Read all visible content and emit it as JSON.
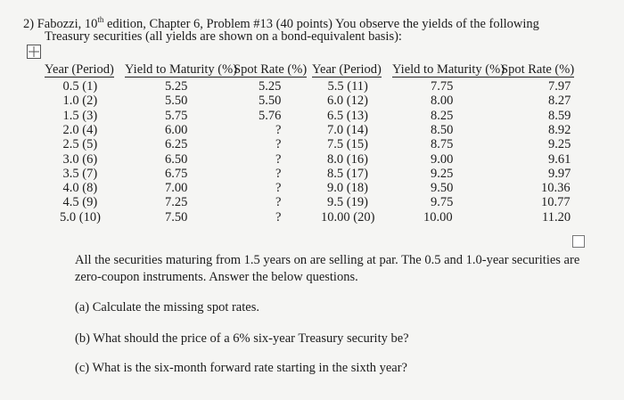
{
  "problem": {
    "prefix": "2) Fabozzi, 10",
    "sup": "th",
    "line1": "edition, Chapter 6, Problem #13 (40 points) You observe the yields of the following",
    "line2": "Treasury securities (all yields are shown on a bond-equivalent basis):"
  },
  "table": {
    "columns": [
      "Year (Period)",
      "Yield to Maturity (%)",
      "Spot Rate (%)",
      "Year (Period)",
      "Yield to Maturity (%)",
      "Spot Rate (%)"
    ],
    "rows": [
      [
        "0.5 (1)",
        "5.25",
        "5.25",
        "5.5 (11)",
        "7.75",
        "7.97"
      ],
      [
        "1.0 (2)",
        "5.50",
        "5.50",
        "6.0 (12)",
        "8.00",
        "8.27"
      ],
      [
        "1.5 (3)",
        "5.75",
        "5.76",
        "6.5 (13)",
        "8.25",
        "8.59"
      ],
      [
        "2.0 (4)",
        "6.00",
        "?",
        "7.0 (14)",
        "8.50",
        "8.92"
      ],
      [
        "2.5 (5)",
        "6.25",
        "?",
        "7.5 (15)",
        "8.75",
        "9.25"
      ],
      [
        "3.0 (6)",
        "6.50",
        "?",
        "8.0 (16)",
        "9.00",
        "9.61"
      ],
      [
        "3.5 (7)",
        "6.75",
        "?",
        "8.5 (17)",
        "9.25",
        "9.97"
      ],
      [
        "4.0 (8)",
        "7.00",
        "?",
        "9.0 (18)",
        "9.50",
        "10.36"
      ],
      [
        "4.5 (9)",
        "7.25",
        "?",
        "9.5 (19)",
        "9.75",
        "10.77"
      ],
      [
        "5.0 (10)",
        "7.50",
        "?",
        "10.00 (20)",
        "10.00",
        "11.20"
      ]
    ]
  },
  "paragraph": {
    "line1": "All the securities maturing from 1.5 years on are selling at par. The 0.5 and 1.0-year securities are",
    "line2": "zero-coupon instruments. Answer the below questions."
  },
  "questions": [
    "(a) Calculate the missing spot rates.",
    "(b) What should the price of a 6% six-year Treasury security be?",
    "(c) What is the six-month forward rate starting in the sixth year?"
  ]
}
